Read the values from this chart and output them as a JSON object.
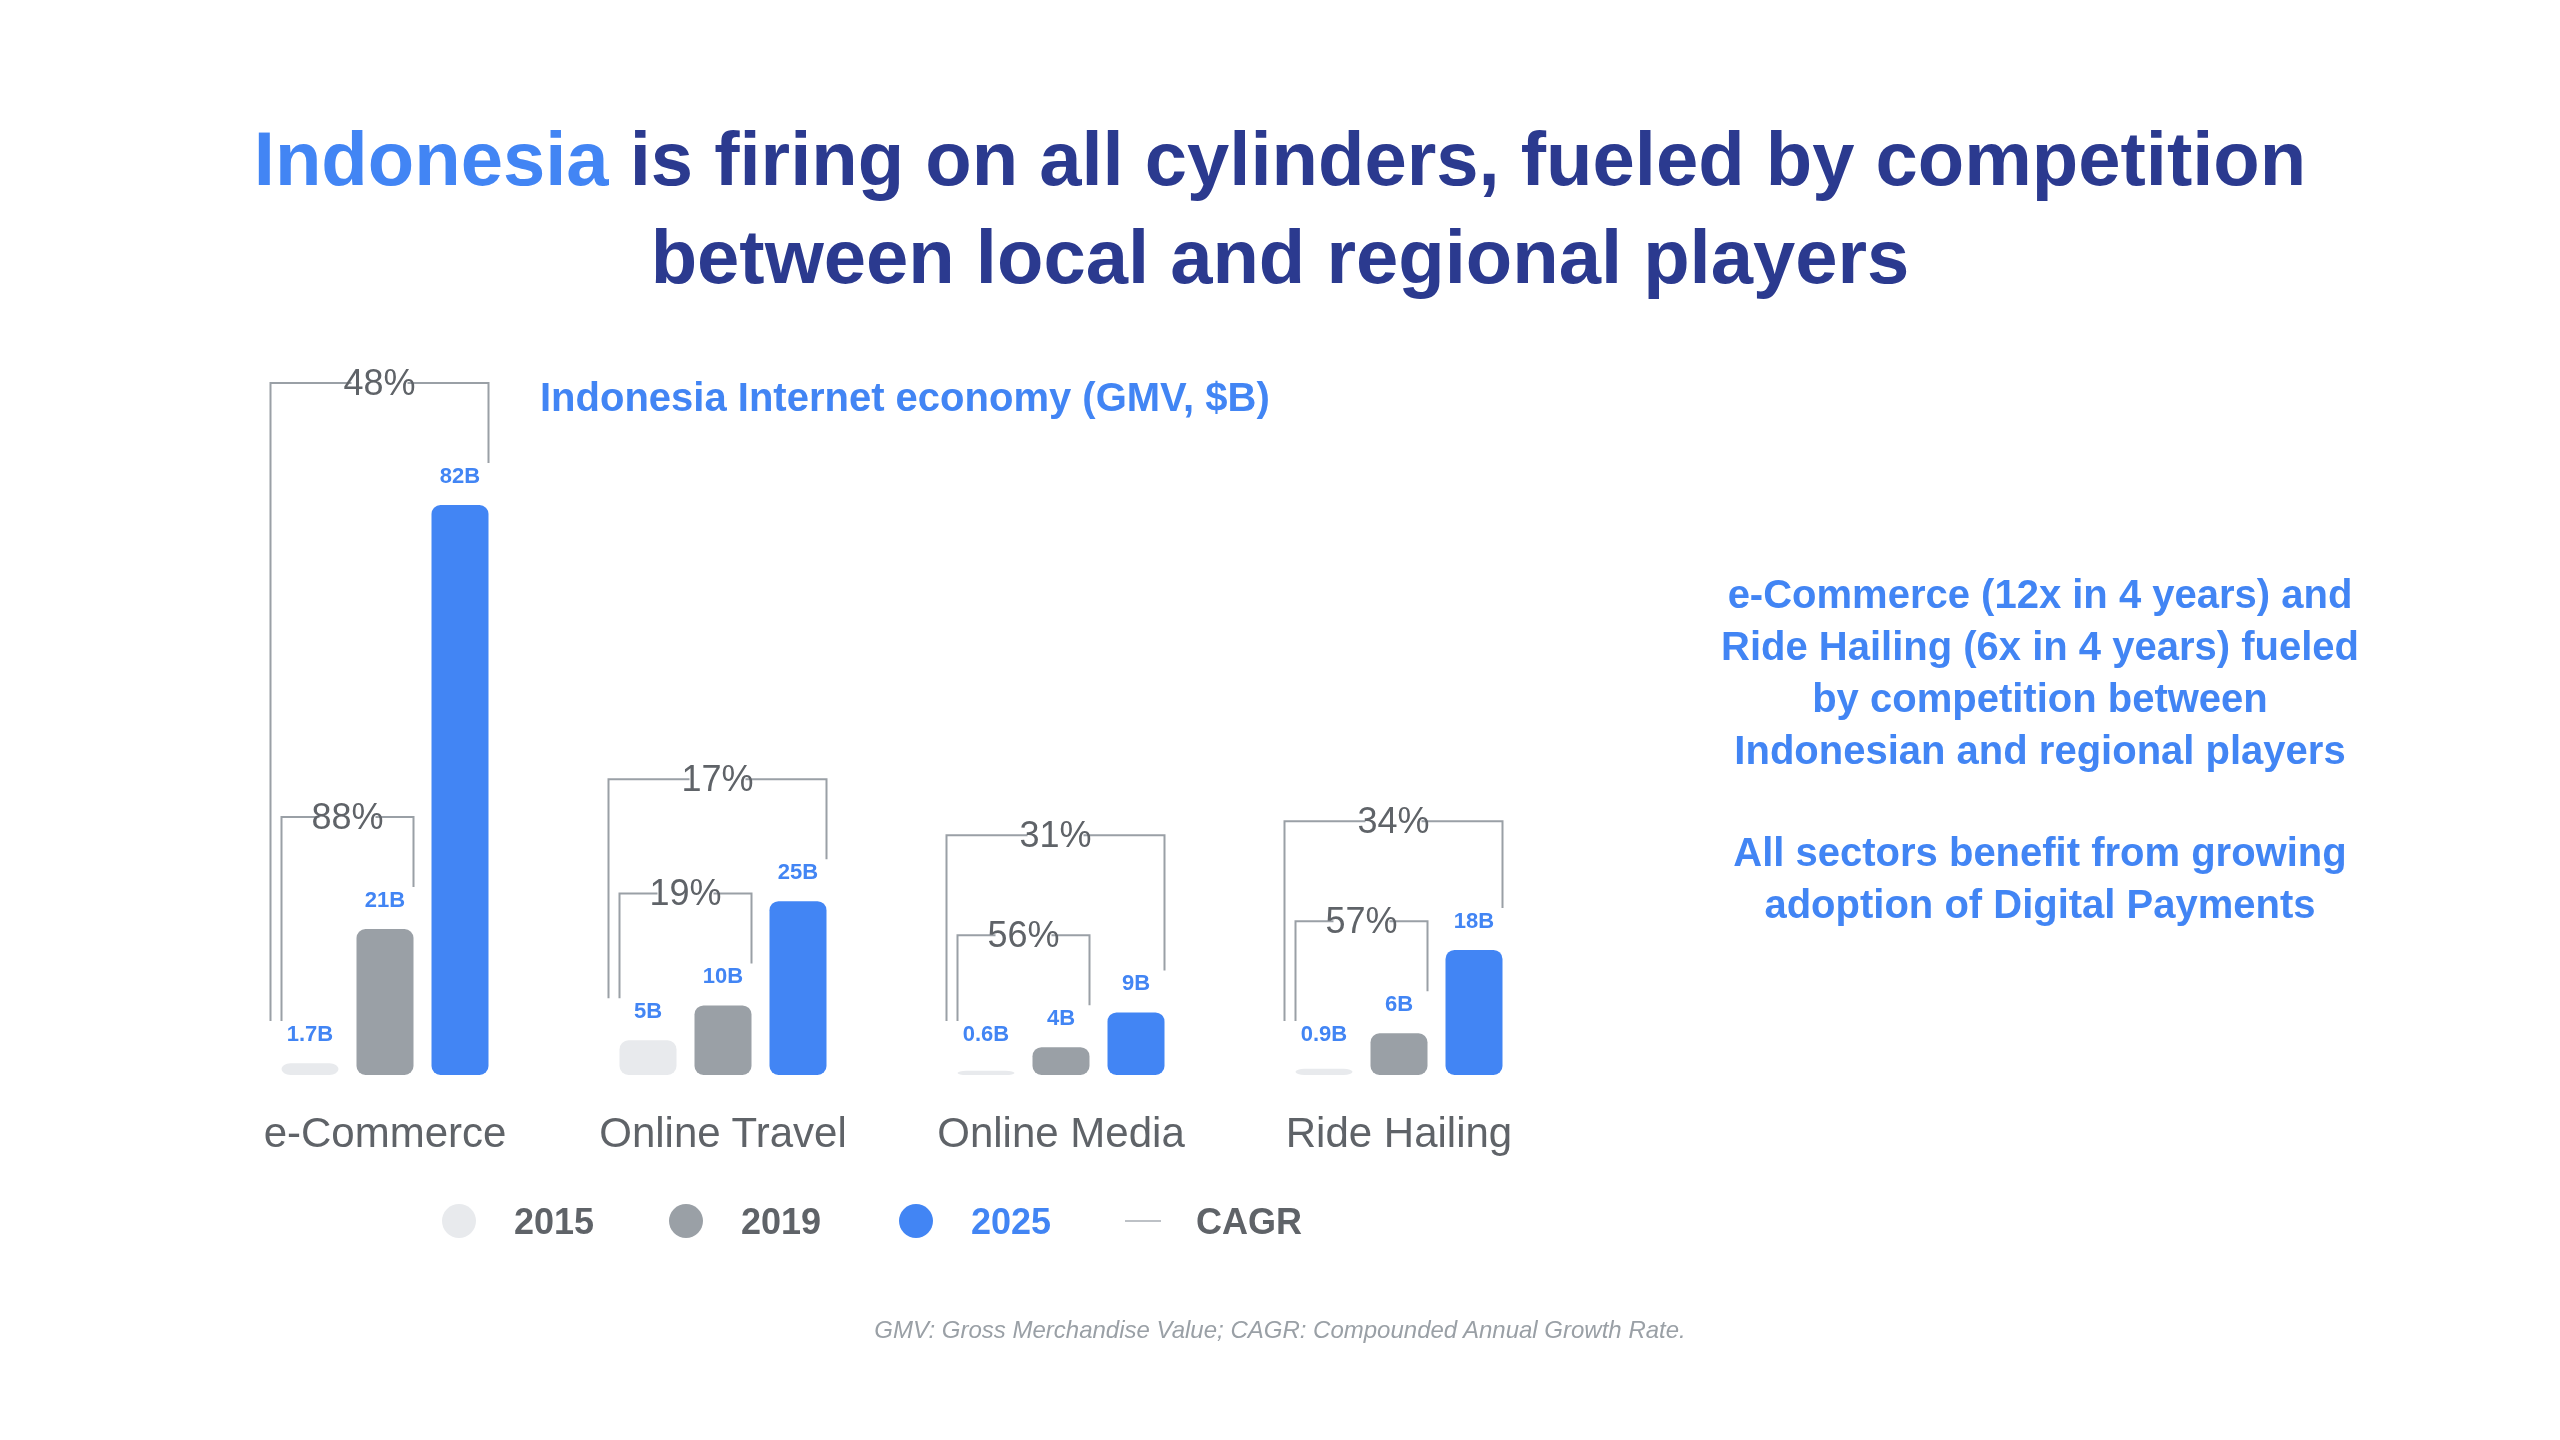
{
  "chart_data": {
    "type": "bar",
    "title": "Indonesia is firing on all cylinders, fueled by competition between local and regional players",
    "subtitle": "Indonesia Internet economy (GMV, $B)",
    "categories": [
      "e-Commerce",
      "Online Travel",
      "Online Media",
      "Ride Hailing"
    ],
    "series": [
      {
        "name": "2015",
        "color": "#e8eaed",
        "values": [
          1.7,
          5,
          0.6,
          0.9
        ],
        "value_labels": [
          "1.7B",
          "5B",
          "0.6B",
          "0.9B"
        ]
      },
      {
        "name": "2019",
        "color": "#9aa0a6",
        "values": [
          21,
          10,
          4,
          6
        ],
        "value_labels": [
          "21B",
          "10B",
          "4B",
          "6B"
        ]
      },
      {
        "name": "2025",
        "color": "#4285f4",
        "values": [
          82,
          25,
          9,
          18
        ],
        "value_labels": [
          "82B",
          "25B",
          "9B",
          "18B"
        ]
      }
    ],
    "annotations": [
      "48%",
      "88%",
      "17%",
      "19%",
      "31%",
      "56%",
      "34%",
      "57%",
      "e-Commerce (12x in 4 years) and Ride Hailing (6x in 4 years) fueled by competition between Indonesian and regional players",
      "All sectors benefit from growing adoption of Digital Payments",
      "CAGR",
      "GMV: Gross Merchandise Value; CAGR: Compounded Annual Growth Rate."
    ],
    "legend": "bottom"
  }
}
